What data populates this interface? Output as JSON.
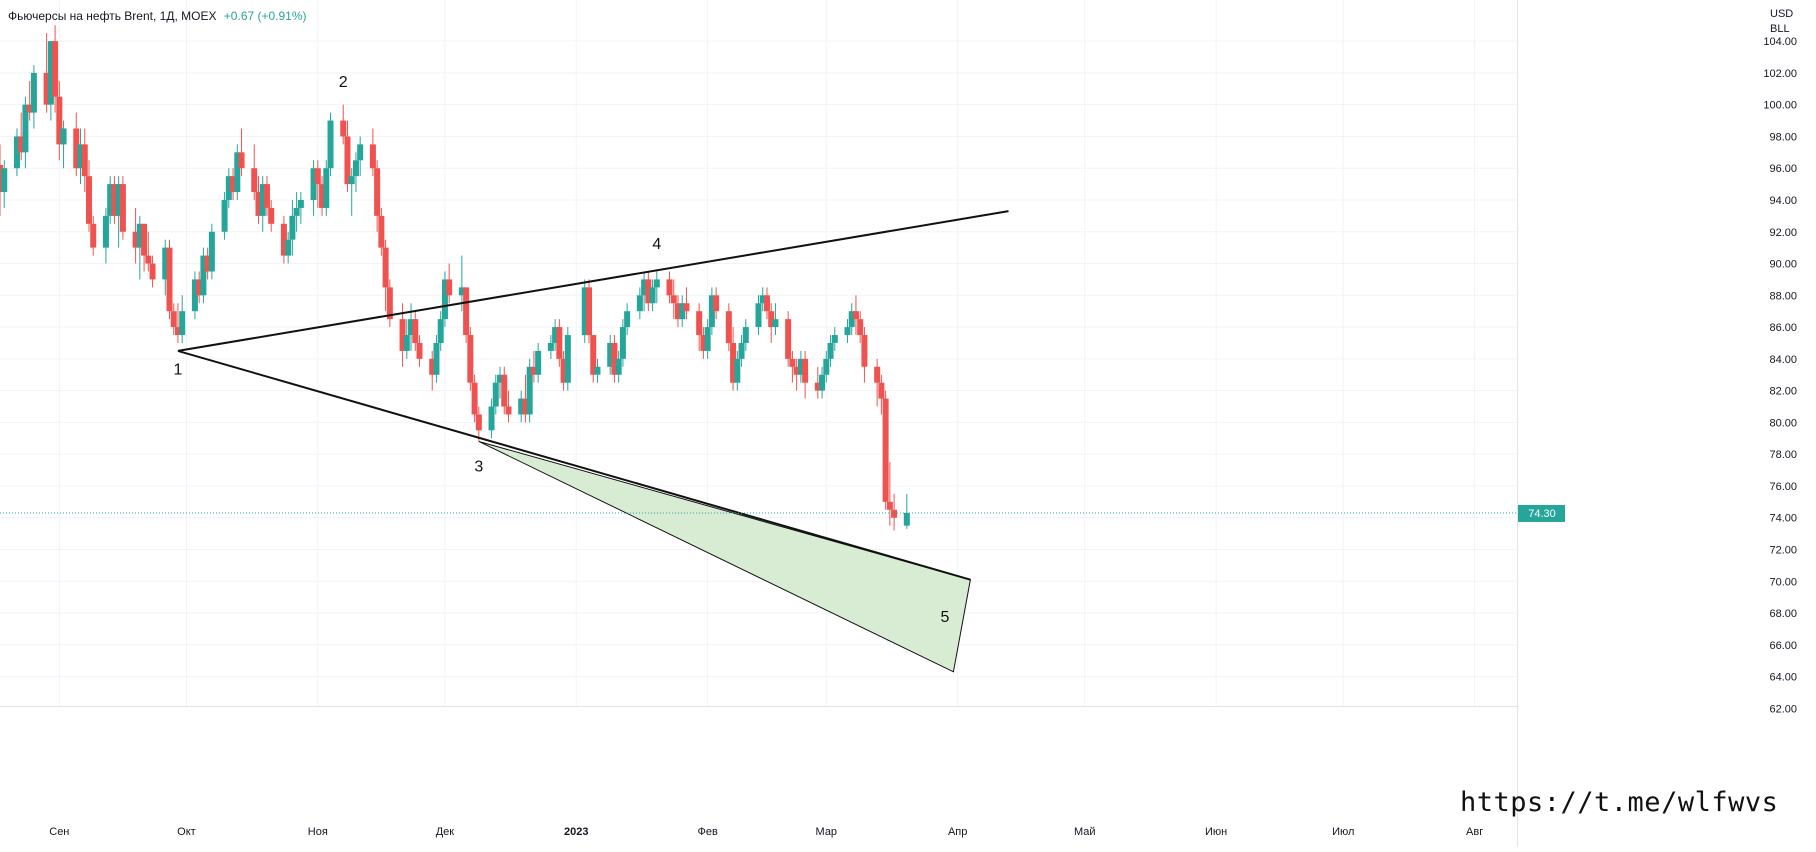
{
  "header": {
    "title": "Фьючерсы на нефть Brent, 1Д, MOEX",
    "change": "+0.67 (+0.91%)"
  },
  "currency": {
    "line1": "USD",
    "line2": "BLL"
  },
  "watermark": "https://t.me/wlfwvs",
  "colors": {
    "up": "#26a69a",
    "down": "#ef5350",
    "grid": "#f0f3fa",
    "triangle_fill": "#d7ecd3",
    "price_line": "#26a69a",
    "text": "#131722"
  },
  "chart_data": {
    "type": "candlestick",
    "title": "Фьючерсы на нефть Brent, 1Д, MOEX",
    "last_price": 74.3,
    "last_price_label": "74.30",
    "ylim": [
      62,
      105
    ],
    "y_ticks": [
      "62.00",
      "64.00",
      "66.00",
      "68.00",
      "70.00",
      "72.00",
      "74.00",
      "76.00",
      "78.00",
      "80.00",
      "82.00",
      "84.00",
      "86.00",
      "88.00",
      "90.00",
      "92.00",
      "94.00",
      "96.00",
      "98.00",
      "100.00",
      "102.00",
      "104.00"
    ],
    "x_ticks": [
      {
        "label": "Сен",
        "date": "2022-09-01"
      },
      {
        "label": "Окт",
        "date": "2022-10-01"
      },
      {
        "label": "Ноя",
        "date": "2022-11-01"
      },
      {
        "label": "Дек",
        "date": "2022-12-01"
      },
      {
        "label": "2023",
        "date": "2023-01-01"
      },
      {
        "label": "Фев",
        "date": "2023-02-01"
      },
      {
        "label": "Мар",
        "date": "2023-03-01"
      },
      {
        "label": "Апр",
        "date": "2023-04-01"
      },
      {
        "label": "Май",
        "date": "2023-05-01"
      },
      {
        "label": "Июн",
        "date": "2023-06-01"
      },
      {
        "label": "Июл",
        "date": "2023-07-01"
      },
      {
        "label": "Авг",
        "date": "2023-08-01"
      }
    ],
    "x_range": [
      "2022-08-18",
      "2023-08-11"
    ],
    "candles": [
      [
        "2022-08-18",
        96.2,
        97.5,
        93.0,
        94.5
      ],
      [
        "2022-08-19",
        94.5,
        96.5,
        93.5,
        96.0
      ],
      [
        "2022-08-22",
        96.0,
        98.5,
        95.5,
        98.0
      ],
      [
        "2022-08-23",
        98.0,
        99.5,
        96.5,
        97.0
      ],
      [
        "2022-08-24",
        97.0,
        100.5,
        96.0,
        100.0
      ],
      [
        "2022-08-25",
        100.0,
        101.5,
        99.0,
        99.5
      ],
      [
        "2022-08-26",
        99.5,
        102.5,
        98.5,
        102.0
      ],
      [
        "2022-08-29",
        102.0,
        104.5,
        99.5,
        100.0
      ],
      [
        "2022-08-30",
        100.0,
        104.0,
        99.0,
        104.0
      ],
      [
        "2022-08-31",
        104.0,
        105.0,
        99.5,
        100.5
      ],
      [
        "2022-09-01",
        100.5,
        101.5,
        96.5,
        97.5
      ],
      [
        "2022-09-02",
        97.5,
        99.0,
        96.0,
        98.5
      ],
      [
        "2022-09-05",
        98.5,
        99.5,
        95.5,
        96.0
      ],
      [
        "2022-09-06",
        96.0,
        98.5,
        95.0,
        97.5
      ],
      [
        "2022-09-07",
        97.5,
        98.5,
        94.5,
        95.5
      ],
      [
        "2022-09-08",
        95.5,
        96.5,
        92.0,
        92.5
      ],
      [
        "2022-09-09",
        92.5,
        93.0,
        90.5,
        91.0
      ],
      [
        "2022-09-12",
        91.0,
        93.5,
        90.0,
        93.0
      ],
      [
        "2022-09-13",
        93.0,
        95.5,
        92.5,
        95.0
      ],
      [
        "2022-09-14",
        95.0,
        95.5,
        92.5,
        93.0
      ],
      [
        "2022-09-15",
        93.0,
        95.5,
        91.0,
        95.0
      ],
      [
        "2022-09-16",
        95.0,
        95.5,
        91.5,
        92.0
      ],
      [
        "2022-09-19",
        92.0,
        93.5,
        90.0,
        91.0
      ],
      [
        "2022-09-20",
        91.0,
        93.0,
        89.0,
        92.5
      ],
      [
        "2022-09-21",
        92.5,
        92.5,
        89.5,
        90.5
      ],
      [
        "2022-09-22",
        90.5,
        92.0,
        89.5,
        90.0
      ],
      [
        "2022-09-23",
        90.0,
        90.5,
        88.5,
        89.0
      ],
      [
        "2022-09-26",
        89.0,
        91.5,
        88.0,
        91.0
      ],
      [
        "2022-09-27",
        91.0,
        91.5,
        86.5,
        87.0
      ],
      [
        "2022-09-28",
        87.0,
        87.5,
        85.5,
        86.0
      ],
      [
        "2022-09-29",
        86.0,
        87.5,
        85.0,
        85.5
      ],
      [
        "2022-09-30",
        85.5,
        88.0,
        85.0,
        87.0
      ],
      [
        "2022-10-03",
        87.0,
        89.5,
        86.5,
        89.0
      ],
      [
        "2022-10-04",
        89.0,
        89.5,
        87.5,
        88.0
      ],
      [
        "2022-10-05",
        88.0,
        91.0,
        87.5,
        90.5
      ],
      [
        "2022-10-06",
        90.5,
        91.0,
        89.0,
        89.5
      ],
      [
        "2022-10-07",
        89.5,
        92.5,
        89.0,
        92.0
      ],
      [
        "2022-10-10",
        92.0,
        94.5,
        91.5,
        94.0
      ],
      [
        "2022-10-11",
        94.0,
        96.0,
        93.5,
        95.5
      ],
      [
        "2022-10-12",
        95.5,
        96.0,
        94.0,
        94.5
      ],
      [
        "2022-10-13",
        94.5,
        97.5,
        94.0,
        97.0
      ],
      [
        "2022-10-14",
        97.0,
        98.5,
        95.5,
        96.0
      ],
      [
        "2022-10-17",
        96.0,
        97.5,
        94.0,
        94.5
      ],
      [
        "2022-10-18",
        94.5,
        95.5,
        92.5,
        93.0
      ],
      [
        "2022-10-19",
        93.0,
        95.5,
        92.0,
        95.0
      ],
      [
        "2022-10-20",
        95.0,
        95.5,
        93.0,
        93.5
      ],
      [
        "2022-10-21",
        93.5,
        94.0,
        92.0,
        92.5
      ],
      [
        "2022-10-24",
        92.5,
        93.0,
        90.0,
        90.5
      ],
      [
        "2022-10-25",
        90.5,
        92.0,
        90.0,
        91.5
      ],
      [
        "2022-10-26",
        91.5,
        94.0,
        90.5,
        93.0
      ],
      [
        "2022-10-27",
        93.0,
        94.5,
        92.0,
        93.5
      ],
      [
        "2022-10-28",
        93.5,
        94.5,
        92.5,
        94.0
      ],
      [
        "2022-10-31",
        94.0,
        96.5,
        93.0,
        96.0
      ],
      [
        "2022-11-01",
        96.0,
        96.5,
        93.5,
        95.0
      ],
      [
        "2022-11-02",
        95.0,
        95.5,
        93.0,
        93.5
      ],
      [
        "2022-11-03",
        93.5,
        96.5,
        93.0,
        96.0
      ],
      [
        "2022-11-04",
        96.0,
        99.5,
        95.5,
        99.0
      ],
      [
        "2022-11-07",
        99.0,
        100.0,
        97.5,
        98.0
      ],
      [
        "2022-11-08",
        98.0,
        99.0,
        94.5,
        95.0
      ],
      [
        "2022-11-09",
        95.0,
        96.0,
        93.0,
        95.5
      ],
      [
        "2022-11-10",
        95.5,
        97.0,
        94.5,
        96.5
      ],
      [
        "2022-11-11",
        96.5,
        98.0,
        95.5,
        97.5
      ],
      [
        "2022-11-14",
        97.5,
        98.5,
        95.5,
        96.0
      ],
      [
        "2022-11-15",
        96.0,
        96.5,
        92.0,
        93.0
      ],
      [
        "2022-11-16",
        93.0,
        93.5,
        90.5,
        91.0
      ],
      [
        "2022-11-17",
        91.0,
        91.5,
        87.0,
        88.5
      ],
      [
        "2022-11-18",
        88.5,
        89.0,
        86.0,
        86.5
      ],
      [
        "2022-11-21",
        86.5,
        87.5,
        83.5,
        84.5
      ],
      [
        "2022-11-22",
        84.5,
        86.5,
        84.0,
        85.5
      ],
      [
        "2022-11-23",
        85.5,
        87.5,
        84.5,
        86.5
      ],
      [
        "2022-11-24",
        86.5,
        87.0,
        84.5,
        85.0
      ],
      [
        "2022-11-25",
        85.0,
        85.5,
        83.5,
        84.0
      ],
      [
        "2022-11-28",
        84.0,
        84.5,
        82.0,
        83.0
      ],
      [
        "2022-11-29",
        83.0,
        85.5,
        82.5,
        85.0
      ],
      [
        "2022-11-30",
        85.0,
        87.0,
        84.5,
        86.5
      ],
      [
        "2022-12-01",
        86.5,
        89.5,
        86.0,
        89.0
      ],
      [
        "2022-12-02",
        89.0,
        90.0,
        87.5,
        88.0
      ],
      [
        "2022-12-05",
        88.0,
        90.5,
        87.0,
        88.5
      ],
      [
        "2022-12-06",
        88.5,
        88.5,
        85.0,
        85.5
      ],
      [
        "2022-12-07",
        85.5,
        86.0,
        82.0,
        82.5
      ],
      [
        "2022-12-08",
        82.5,
        83.0,
        80.0,
        80.5
      ],
      [
        "2022-12-09",
        80.5,
        81.0,
        78.8,
        79.5
      ],
      [
        "2022-12-12",
        79.5,
        81.5,
        79.0,
        81.0
      ],
      [
        "2022-12-13",
        81.0,
        83.0,
        80.5,
        82.5
      ],
      [
        "2022-12-14",
        82.5,
        83.5,
        81.5,
        83.0
      ],
      [
        "2022-12-15",
        83.0,
        83.5,
        80.5,
        81.0
      ],
      [
        "2022-12-16",
        81.0,
        82.0,
        80.0,
        80.5
      ],
      [
        "2022-12-19",
        80.5,
        82.0,
        80.0,
        81.5
      ],
      [
        "2022-12-20",
        81.5,
        83.0,
        80.0,
        80.5
      ],
      [
        "2022-12-21",
        80.5,
        84.0,
        80.0,
        83.5
      ],
      [
        "2022-12-22",
        83.5,
        84.5,
        82.5,
        83.0
      ],
      [
        "2022-12-23",
        83.0,
        85.0,
        82.5,
        84.5
      ],
      [
        "2022-12-26",
        84.5,
        85.5,
        84.0,
        85.0
      ],
      [
        "2022-12-27",
        85.0,
        86.5,
        84.5,
        86.0
      ],
      [
        "2022-12-28",
        86.0,
        86.5,
        83.5,
        84.0
      ],
      [
        "2022-12-29",
        84.0,
        84.5,
        82.0,
        82.5
      ],
      [
        "2022-12-30",
        82.5,
        86.0,
        82.0,
        85.5
      ],
      [
        "2023-01-03",
        85.5,
        89.0,
        85.0,
        88.5
      ],
      [
        "2023-01-04",
        88.5,
        89.0,
        85.0,
        85.5
      ],
      [
        "2023-01-05",
        85.5,
        85.5,
        82.5,
        83.0
      ],
      [
        "2023-01-06",
        83.0,
        84.0,
        82.5,
        83.5
      ],
      [
        "2023-01-09",
        83.5,
        85.5,
        83.0,
        85.0
      ],
      [
        "2023-01-10",
        85.0,
        85.5,
        82.5,
        83.0
      ],
      [
        "2023-01-11",
        83.0,
        84.5,
        82.5,
        84.0
      ],
      [
        "2023-01-12",
        84.0,
        86.5,
        83.5,
        86.0
      ],
      [
        "2023-01-13",
        86.0,
        87.5,
        85.5,
        87.0
      ],
      [
        "2023-01-16",
        87.0,
        88.5,
        86.5,
        88.0
      ],
      [
        "2023-01-17",
        88.0,
        89.5,
        87.0,
        89.0
      ],
      [
        "2023-01-18",
        89.0,
        89.5,
        87.0,
        87.5
      ],
      [
        "2023-01-19",
        87.5,
        89.0,
        87.0,
        88.5
      ],
      [
        "2023-01-20",
        88.5,
        89.5,
        87.5,
        89.0
      ],
      [
        "2023-01-23",
        89.0,
        89.5,
        87.5,
        88.0
      ],
      [
        "2023-01-24",
        88.0,
        89.0,
        86.5,
        87.5
      ],
      [
        "2023-01-25",
        87.5,
        88.0,
        86.0,
        86.5
      ],
      [
        "2023-01-26",
        86.5,
        88.0,
        86.0,
        87.5
      ],
      [
        "2023-01-27",
        87.5,
        88.5,
        86.5,
        87.0
      ],
      [
        "2023-01-30",
        87.0,
        87.5,
        84.5,
        85.5
      ],
      [
        "2023-01-31",
        85.5,
        86.0,
        84.0,
        84.5
      ],
      [
        "2023-02-01",
        84.5,
        86.5,
        84.0,
        86.0
      ],
      [
        "2023-02-02",
        86.0,
        88.5,
        85.5,
        88.0
      ],
      [
        "2023-02-03",
        88.0,
        88.5,
        86.5,
        87.0
      ],
      [
        "2023-02-06",
        87.0,
        87.5,
        84.5,
        85.0
      ],
      [
        "2023-02-07",
        85.0,
        86.0,
        82.0,
        82.5
      ],
      [
        "2023-02-08",
        82.5,
        84.5,
        82.0,
        84.0
      ],
      [
        "2023-02-09",
        84.0,
        85.5,
        83.5,
        85.0
      ],
      [
        "2023-02-10",
        85.0,
        86.5,
        84.5,
        86.0
      ],
      [
        "2023-02-13",
        86.0,
        88.0,
        85.5,
        87.5
      ],
      [
        "2023-02-14",
        87.5,
        88.5,
        87.0,
        88.0
      ],
      [
        "2023-02-15",
        88.0,
        88.5,
        86.5,
        87.0
      ],
      [
        "2023-02-16",
        87.0,
        87.5,
        85.0,
        86.0
      ],
      [
        "2023-02-17",
        86.0,
        87.5,
        85.5,
        86.5
      ],
      [
        "2023-02-20",
        86.5,
        87.0,
        83.5,
        84.0
      ],
      [
        "2023-02-21",
        84.0,
        84.5,
        82.5,
        83.5
      ],
      [
        "2023-02-22",
        83.5,
        84.0,
        82.0,
        83.0
      ],
      [
        "2023-02-23",
        83.0,
        84.5,
        82.5,
        84.0
      ],
      [
        "2023-02-24",
        84.0,
        84.5,
        81.5,
        82.5
      ],
      [
        "2023-02-27",
        82.5,
        83.5,
        81.5,
        82.0
      ],
      [
        "2023-02-28",
        82.0,
        83.5,
        81.5,
        83.0
      ],
      [
        "2023-03-01",
        83.0,
        84.5,
        82.5,
        84.0
      ],
      [
        "2023-03-02",
        84.0,
        85.5,
        83.5,
        85.0
      ],
      [
        "2023-03-03",
        85.0,
        86.0,
        84.5,
        85.5
      ],
      [
        "2023-03-06",
        85.5,
        86.5,
        85.0,
        86.0
      ],
      [
        "2023-03-07",
        86.0,
        87.5,
        85.5,
        87.0
      ],
      [
        "2023-03-08",
        87.0,
        88.0,
        85.5,
        86.5
      ],
      [
        "2023-03-09",
        86.5,
        87.0,
        85.0,
        85.5
      ],
      [
        "2023-03-10",
        85.5,
        86.0,
        82.5,
        83.5
      ],
      [
        "2023-03-13",
        83.5,
        84.0,
        81.0,
        82.5
      ],
      [
        "2023-03-14",
        82.5,
        83.0,
        80.5,
        81.5
      ],
      [
        "2023-03-15",
        81.5,
        82.0,
        74.5,
        75.0
      ],
      [
        "2023-03-16",
        75.0,
        77.5,
        73.5,
        74.5
      ],
      [
        "2023-03-17",
        74.5,
        75.5,
        73.2,
        74.0
      ],
      [
        "2023-03-20",
        73.5,
        75.5,
        73.3,
        74.3
      ]
    ],
    "trendlines": [
      {
        "from": [
          "2022-09-29",
          84.5
        ],
        "to": [
          "2023-04-13",
          93.3
        ]
      },
      {
        "from": [
          "2022-09-29",
          84.5
        ],
        "to": [
          "2023-04-04",
          70.1
        ]
      }
    ],
    "triangle": [
      [
        "2022-12-09",
        78.8
      ],
      [
        "2023-04-04",
        70.1
      ],
      [
        "2023-03-31",
        64.3
      ]
    ],
    "wave_labels": [
      {
        "label": "1",
        "date": "2022-09-29",
        "price": 83.4
      },
      {
        "label": "2",
        "date": "2022-11-07",
        "price": 101.5
      },
      {
        "label": "3",
        "date": "2022-12-09",
        "price": 77.3
      },
      {
        "label": "4",
        "date": "2023-01-20",
        "price": 91.3
      },
      {
        "label": "5",
        "date": "2023-03-29",
        "price": 67.8
      }
    ]
  }
}
